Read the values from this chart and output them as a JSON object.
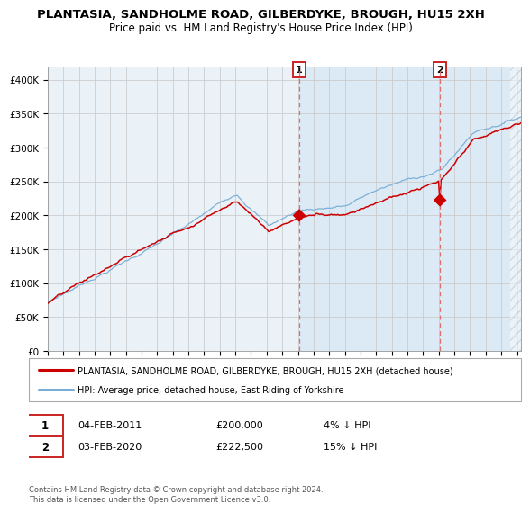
{
  "title": "PLANTASIA, SANDHOLME ROAD, GILBERDYKE, BROUGH, HU15 2XH",
  "subtitle": "Price paid vs. HM Land Registry's House Price Index (HPI)",
  "ylim": [
    0,
    420000
  ],
  "yticks": [
    0,
    50000,
    100000,
    150000,
    200000,
    250000,
    300000,
    350000,
    400000
  ],
  "ytick_labels": [
    "£0",
    "£50K",
    "£100K",
    "£150K",
    "£200K",
    "£250K",
    "£300K",
    "£350K",
    "£400K"
  ],
  "sale1_year_f": 2011.083,
  "sale1_date": "04-FEB-2011",
  "sale1_price": 200000,
  "sale1_pct": "4%",
  "sale2_year_f": 2020.083,
  "sale2_date": "03-FEB-2020",
  "sale2_price": 222500,
  "sale2_pct": "15%",
  "line_color_property": "#cc0000",
  "line_color_hpi": "#7aadd4",
  "shade_color": "#dbeaf5",
  "grid_color": "#cccccc",
  "bg_color": "#ffffff",
  "plot_bg_color": "#eaf2f8",
  "legend_label_property": "PLANTASIA, SANDHOLME ROAD, GILBERDYKE, BROUGH, HU15 2XH (detached house)",
  "legend_label_hpi": "HPI: Average price, detached house, East Riding of Yorkshire",
  "footnote": "Contains HM Land Registry data © Crown copyright and database right 2024.\nThis data is licensed under the Open Government Licence v3.0.",
  "title_fontsize": 9.5,
  "subtitle_fontsize": 8.5
}
